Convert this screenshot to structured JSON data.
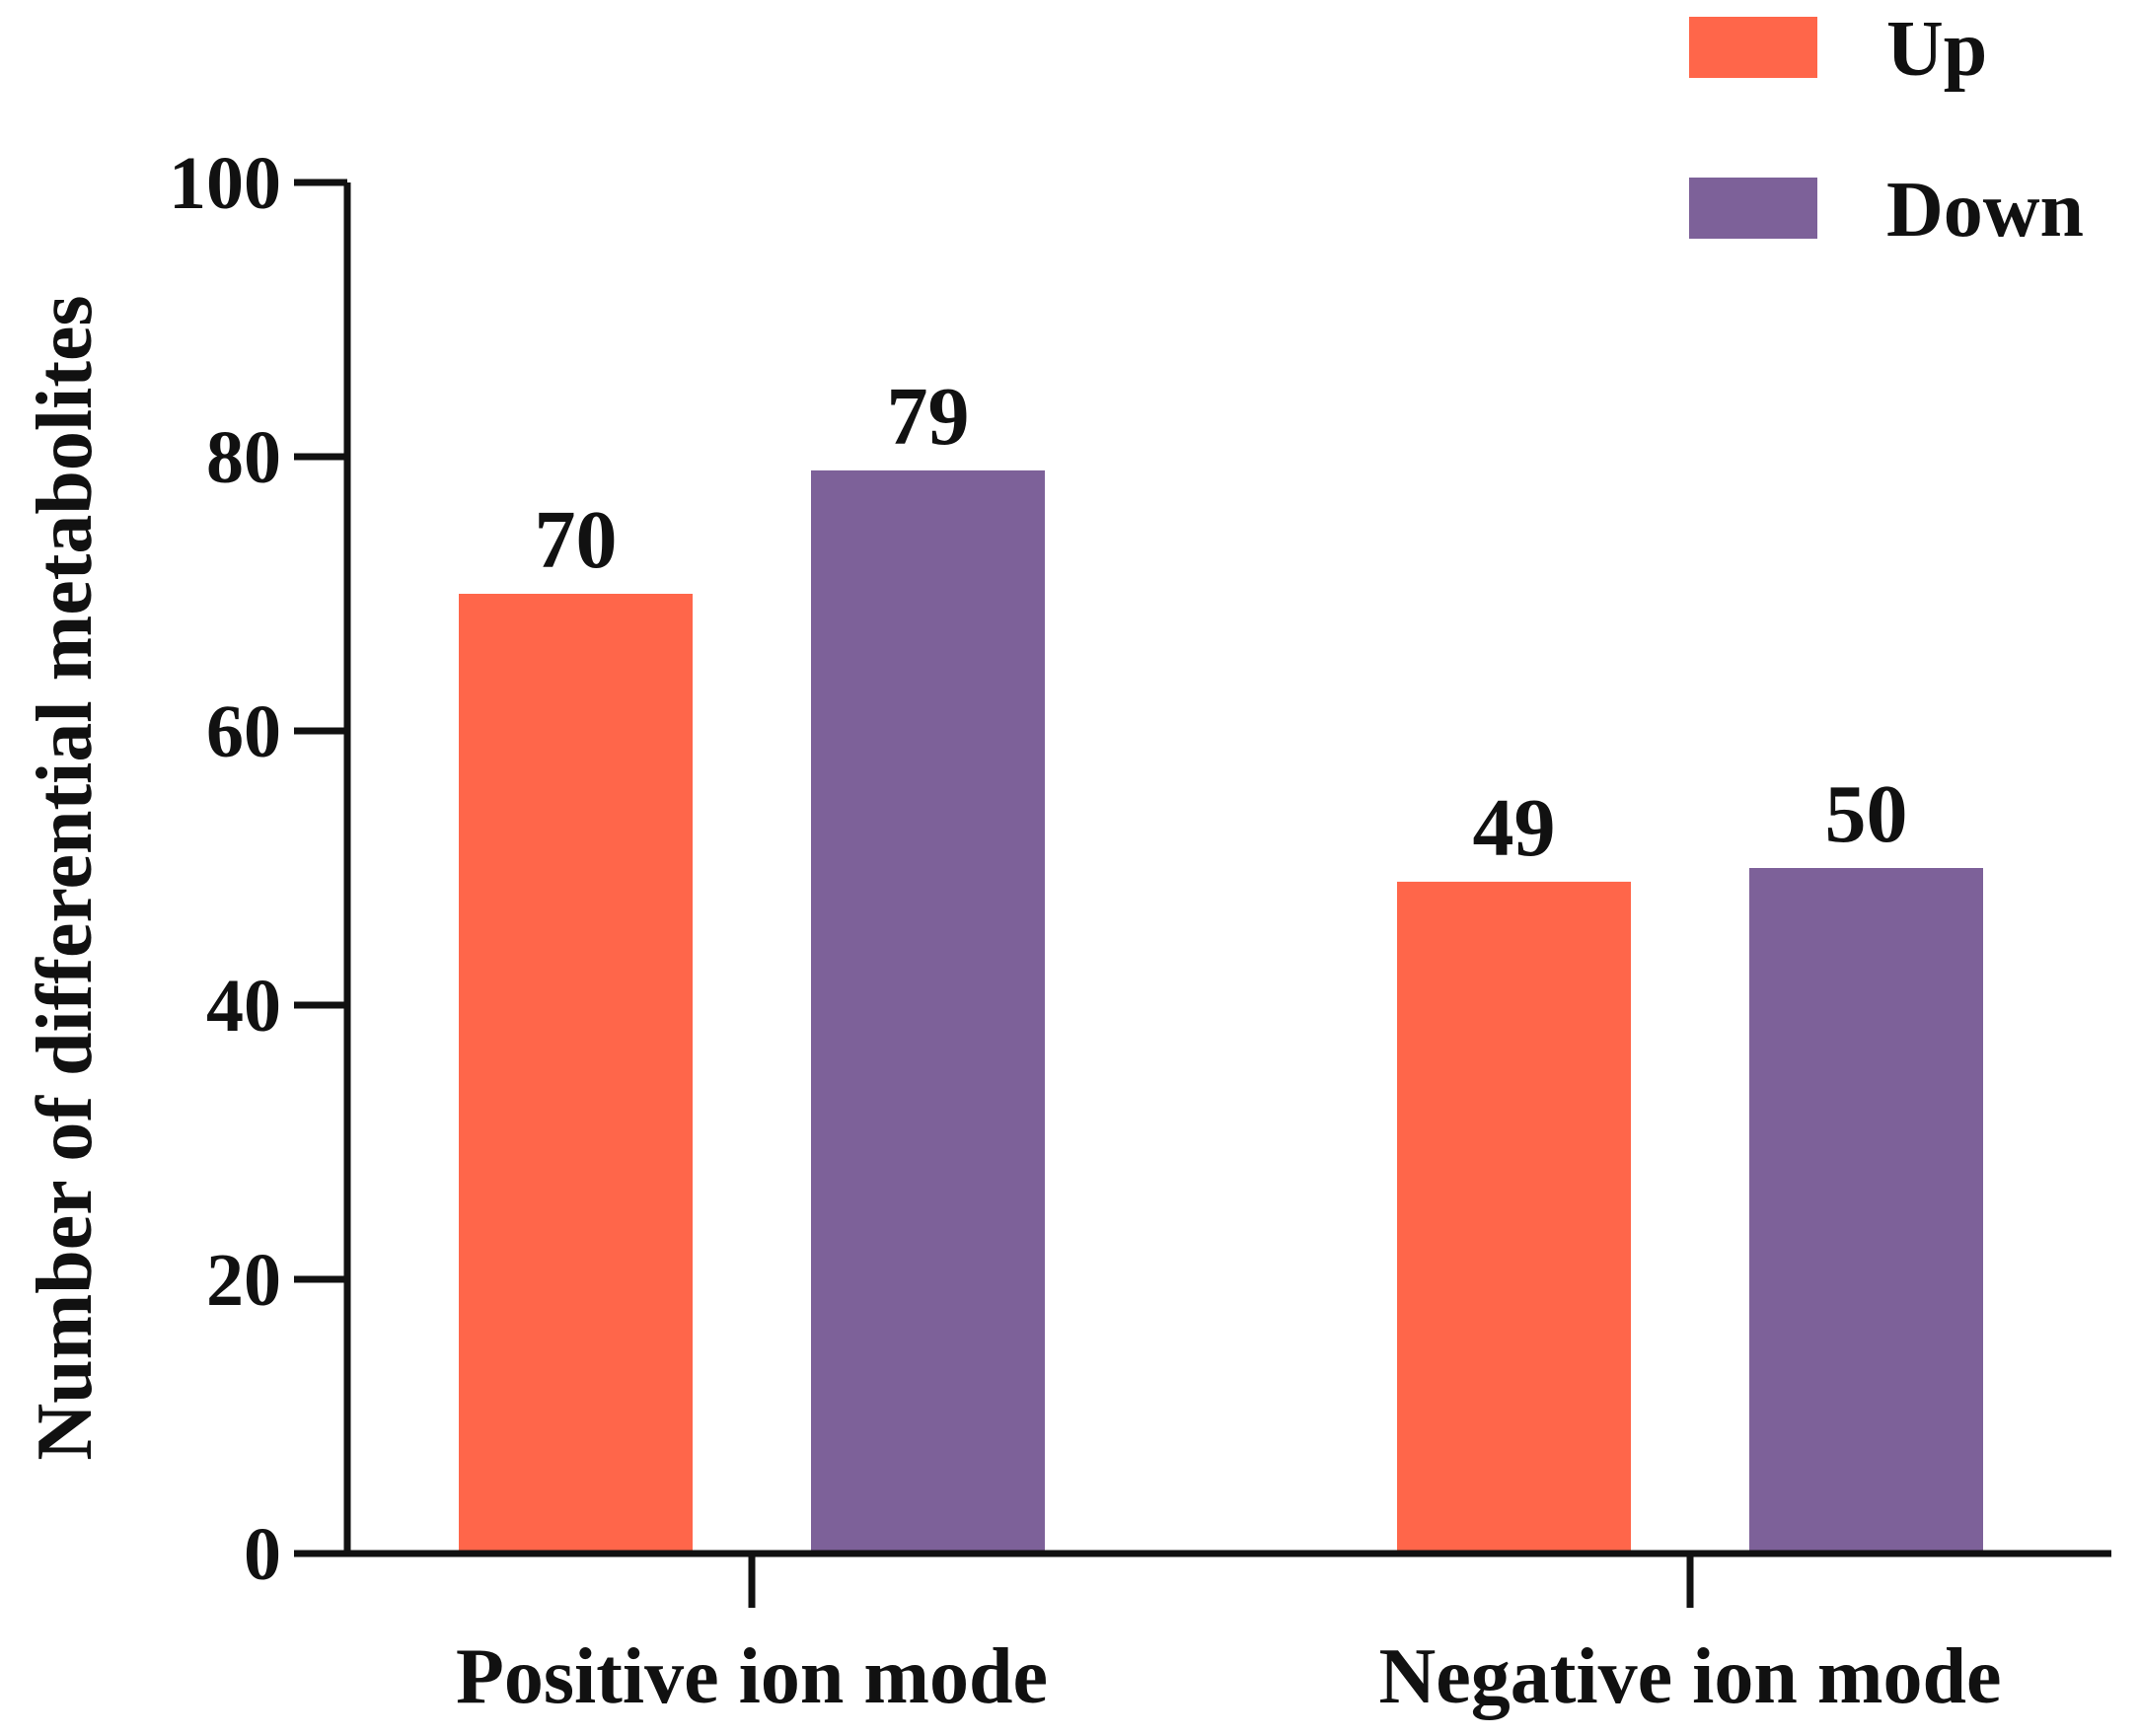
{
  "chart_data": {
    "type": "bar",
    "title": "",
    "xlabel": "",
    "ylabel": "Number of differential metabolites",
    "categories": [
      "Positive ion mode",
      "Negative ion mode"
    ],
    "series": [
      {
        "name": "Up",
        "values": [
          70,
          49
        ],
        "color": "#FF664A"
      },
      {
        "name": "Down",
        "values": [
          79,
          50
        ],
        "color": "#7D6199"
      }
    ],
    "ylim": [
      0,
      100
    ],
    "yticks": [
      0,
      20,
      40,
      60,
      80,
      100
    ],
    "grid": false,
    "legend": "top-right",
    "data_labels": true
  }
}
